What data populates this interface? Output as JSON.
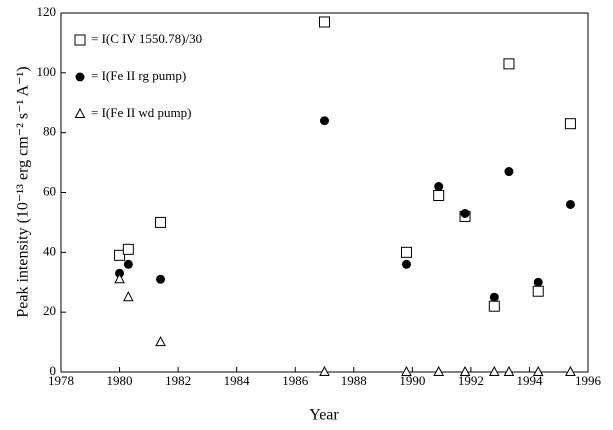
{
  "chart_data": {
    "type": "scatter",
    "xlabel": "Year",
    "ylabel": "Peak intensity (10⁻¹³ erg cm⁻² s⁻¹ A⁻¹)",
    "x": [
      1980.0,
      1980.3,
      1981.4,
      1987.0,
      1989.8,
      1990.9,
      1991.8,
      1992.8,
      1993.3,
      1994.3,
      1995.4
    ],
    "series": [
      {
        "name": "= I(C IV 1550.78)/30",
        "marker": "square",
        "color": "#000000",
        "values": [
          39,
          41,
          50,
          117,
          40,
          59,
          52,
          22,
          103,
          27,
          83
        ]
      },
      {
        "name": "= I(Fe II rg pump)",
        "marker": "circle",
        "color": "#000000",
        "values": [
          33,
          36,
          31,
          84,
          36,
          62,
          53,
          25,
          67,
          30,
          56
        ]
      },
      {
        "name": "= I(Fe II wd pump)",
        "marker": "triangle",
        "color": "#000000",
        "values": [
          31,
          25,
          10,
          0,
          0,
          0,
          0,
          0,
          0,
          0,
          0
        ]
      }
    ],
    "xlim": [
      1978,
      1996
    ],
    "xticks": [
      1978,
      1980,
      1982,
      1984,
      1986,
      1988,
      1990,
      1992,
      1994,
      1996
    ],
    "ylim": [
      0,
      120
    ],
    "yticks": [
      0,
      20,
      40,
      60,
      80,
      100,
      120
    ],
    "legend": "upper-left"
  }
}
